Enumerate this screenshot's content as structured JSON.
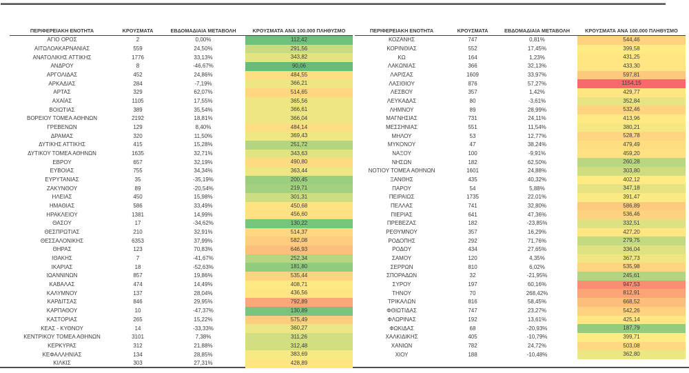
{
  "chart_data": {
    "type": "table",
    "title": "",
    "columns": [
      "ΠΕΡΙΦΕΡΕΙΑΚΗ ΕΝΟΤΗΤΑ",
      "ΚΡΟΥΣΜΑΤΑ",
      "ΕΒΔΟΜΑΔΙΑΙΑ ΜΕΤΑΒΟΛΗ",
      "ΚΡΟΥΣΜΑΤΑ ΑΝΑ 100.000 ΠΛΗΘΥΣΜΟ"
    ],
    "heatmap": {
      "applies_to_column": "ΚΡΟΥΣΜΑΤΑ ΑΝΑ 100.000 ΠΛΗΘΥΣΜΟ",
      "scale": "3-color, green at min, yellow at median, red at max",
      "min_color": "#63BE7B",
      "mid_color": "#FFEB84",
      "max_color": "#F8696B"
    },
    "left_rows": [
      [
        "ΑΓΙΟ ΟΡΟΣ",
        "2",
        "0,00%",
        "112,42"
      ],
      [
        "ΑΙΤΩΛΟΑΚΑΡΝΑΝΙΑΣ",
        "559",
        "24,50%",
        "291,56"
      ],
      [
        "ΑΝΑΤΟΛΙΚΗΣ ΑΤΤΙΚΗΣ",
        "1776",
        "33,13%",
        "343,82"
      ],
      [
        "ΑΝΔΡΟΥ",
        "8",
        "-46,67%",
        "90,06"
      ],
      [
        "ΑΡΓΟΛΙΔΑΣ",
        "452",
        "24,86%",
        "484,55"
      ],
      [
        "ΑΡΚΑΔΙΑΣ",
        "284",
        "-7,19%",
        "366,21"
      ],
      [
        "ΑΡΤΑΣ",
        "329",
        "62,07%",
        "514,65"
      ],
      [
        "ΑΧΑΪΑΣ",
        "1105",
        "17,55%",
        "365,56"
      ],
      [
        "ΒΟΙΩΤΙΑΣ",
        "389",
        "35,54%",
        "366,61"
      ],
      [
        "ΒΟΡΕΙΟΥ ΤΟΜΕΑ ΑΘΗΝΩΝ",
        "2192",
        "18,81%",
        "366,04"
      ],
      [
        "ΓΡΕΒΕΝΩΝ",
        "129",
        "8,40%",
        "484,14"
      ],
      [
        "ΔΡΑΜΑΣ",
        "320",
        "11,50%",
        "369,43"
      ],
      [
        "ΔΥΤΙΚΗΣ ΑΤΤΙΚΗΣ",
        "415",
        "15,28%",
        "251,72"
      ],
      [
        "ΔΥΤΙΚΟΥ ΤΟΜΕΑ ΑΘΗΝΩΝ",
        "1635",
        "32,71%",
        "343,63"
      ],
      [
        "ΕΒΡΟΥ",
        "657",
        "32,19%",
        "490,80"
      ],
      [
        "ΕΥΒΟΙΑΣ",
        "755",
        "34,34%",
        "363,44"
      ],
      [
        "ΕΥΡΥΤΑΝΙΑΣ",
        "35",
        "-35,19%",
        "200,45"
      ],
      [
        "ΖΑΚΥΝΘΟΥ",
        "89",
        "-20,54%",
        "219,71"
      ],
      [
        "ΗΛΕΙΑΣ",
        "450",
        "15,98%",
        "301,31"
      ],
      [
        "ΗΜΑΘΙΑΣ",
        "586",
        "33,49%",
        "450,68"
      ],
      [
        "ΗΡΑΚΛΕΙΟΥ",
        "1381",
        "14,99%",
        "456,60"
      ],
      [
        "ΘΑΣΟΥ",
        "17",
        "-34,62%",
        "130,22"
      ],
      [
        "ΘΕΣΠΡΩΤΙΑΣ",
        "210",
        "32,91%",
        "514,37"
      ],
      [
        "ΘΕΣΣΑΛΟΝΙΚΗΣ",
        "6353",
        "37,99%",
        "582,08"
      ],
      [
        "ΘΗΡΑΣ",
        "123",
        "70,83%",
        "646,93"
      ],
      [
        "ΙΘΑΚΗΣ",
        "7",
        "-41,67%",
        "252,34"
      ],
      [
        "ΙΚΑΡΙΑΣ",
        "18",
        "-52,63%",
        "181,80"
      ],
      [
        "ΙΩΑΝΝΙΝΩΝ",
        "857",
        "19,86%",
        "535,44"
      ],
      [
        "ΚΑΒΑΛΑΣ",
        "474",
        "14,49%",
        "408,71"
      ],
      [
        "ΚΑΛΥΜΝΟΥ",
        "137",
        "28,04%",
        "436,56"
      ],
      [
        "ΚΑΡΔΙΤΣΑΣ",
        "846",
        "29,95%",
        "792,89"
      ],
      [
        "ΚΑΡΠΑΘΟΥ",
        "10",
        "-47,37%",
        "130,89"
      ],
      [
        "ΚΑΣΤΟΡΙΑΣ",
        "265",
        "15,22%",
        "575,49"
      ],
      [
        "ΚΕΑΣ - ΚΥΘΝΟΥ",
        "14",
        "-33,33%",
        "360,27"
      ],
      [
        "ΚΕΝΤΡΙΚΟΥ ΤΟΜΕΑ ΑΘΗΝΩΝ",
        "3101",
        "7,38%",
        "311,26"
      ],
      [
        "ΚΕΡΚΥΡΑΣ",
        "312",
        "21,88%",
        "312,48"
      ],
      [
        "ΚΕΦΑΛΛΗΝΙΑΣ",
        "134",
        "28,85%",
        "383,69"
      ],
      [
        "ΚΙΛΚΙΣ",
        "303",
        "27,31%",
        "428,89"
      ]
    ],
    "right_rows": [
      [
        "ΚΟΖΑΝΗΣ",
        "747",
        "0,81%",
        "544,46"
      ],
      [
        "ΚΟΡΙΝΘΙΑΣ",
        "552",
        "17,45%",
        "399,58"
      ],
      [
        "ΚΩ",
        "164",
        "1,23%",
        "431,25"
      ],
      [
        "ΛΑΚΩΝΙΑΣ",
        "366",
        "32,13%",
        "433,30"
      ],
      [
        "ΛΑΡΙΣΑΣ",
        "1609",
        "33,97%",
        "597,81"
      ],
      [
        "ΛΑΣΙΘΙΟΥ",
        "876",
        "57,27%",
        "1154,15"
      ],
      [
        "ΛΕΣΒΟΥ",
        "357",
        "1,42%",
        "429,77"
      ],
      [
        "ΛΕΥΚΑΔΑΣ",
        "80",
        "-3,61%",
        "352,84"
      ],
      [
        "ΛΗΜΝΟΥ",
        "89",
        "28,99%",
        "532,46"
      ],
      [
        "ΜΑΓΝΗΣΙΑΣ",
        "731",
        "24,11%",
        "413,96"
      ],
      [
        "ΜΕΣΣΗΝΙΑΣ",
        "551",
        "11,54%",
        "380,21"
      ],
      [
        "ΜΗΛΟΥ",
        "53",
        "12,77%",
        "528,78"
      ],
      [
        "ΜΥΚΟΝΟΥ",
        "47",
        "38,24%",
        "479,49"
      ],
      [
        "ΝΑΞΟΥ",
        "100",
        "-9,91%",
        "459,20"
      ],
      [
        "ΝΗΣΩΝ",
        "182",
        "62,50%",
        "260,28"
      ],
      [
        "ΝΟΤΙΟΥ ΤΟΜΕΑ ΑΘΗΝΩΝ",
        "1601",
        "24,88%",
        "303,80"
      ],
      [
        "ΞΑΝΘΗΣ",
        "435",
        "40,32%",
        "402,12"
      ],
      [
        "ΠΑΡΟΥ",
        "54",
        "5,88%",
        "347,18"
      ],
      [
        "ΠΕΙΡΑΙΩΣ",
        "1735",
        "22,01%",
        "391,47"
      ],
      [
        "ΠΕΛΛΑΣ",
        "741",
        "32,80%",
        "586,89"
      ],
      [
        "ΠΙΕΡΙΑΣ",
        "641",
        "47,36%",
        "536,46"
      ],
      [
        "ΠΡΕΒΕΖΑΣ",
        "182",
        "-23,85%",
        "332,51"
      ],
      [
        "ΡΕΘΥΜΝΟΥ",
        "357",
        "16,29%",
        "427,20"
      ],
      [
        "ΡΟΔΟΠΗΣ",
        "292",
        "71,76%",
        "279,75"
      ],
      [
        "ΡΟΔΟΥ",
        "434",
        "27,65%",
        "336,04"
      ],
      [
        "ΣΑΜΟΥ",
        "120",
        "4,35%",
        "367,73"
      ],
      [
        "ΣΕΡΡΩΝ",
        "810",
        "6,02%",
        "535,98"
      ],
      [
        "ΣΠΟΡΑΔΩΝ",
        "32",
        "-21,95%",
        "245,61"
      ],
      [
        "ΣΥΡΟΥ",
        "197",
        "60,16%",
        "947,53"
      ],
      [
        "ΤΗΝΟΥ",
        "70",
        "268,42%",
        "812,91"
      ],
      [
        "ΤΡΙΚΑΛΩΝ",
        "816",
        "58,45%",
        "668,52"
      ],
      [
        "ΦΘΙΩΤΙΔΑΣ",
        "747",
        "23,27%",
        "542,26"
      ],
      [
        "ΦΛΩΡΙΝΑΣ",
        "192",
        "13,61%",
        "425,14"
      ],
      [
        "ΦΩΚΙΔΑΣ",
        "68",
        "-20,93%",
        "187,79"
      ],
      [
        "ΧΑΛΚΙΔΙΚΗΣ",
        "405",
        "-10,79%",
        "399,71"
      ],
      [
        "ΧΑΝΙΩΝ",
        "782",
        "24,72%",
        "503,08"
      ],
      [
        "ΧΙΟΥ",
        "188",
        "-10,48%",
        "362,80"
      ]
    ]
  }
}
